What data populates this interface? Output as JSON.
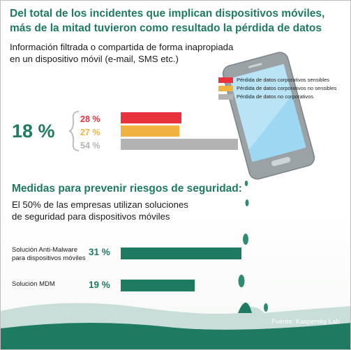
{
  "title": "Del total de los incidentes que implican dispositivos móviles, más de la mitad tuvieron como resultado la pérdida de datos",
  "subtitle": "Información filtrada o compartida de forma inapropiada en un dispositivo móvil (e-mail, SMS etc.)",
  "big_value": "18 %",
  "section2": {
    "title": "Medidas para prevenir riesgos de seguridad:",
    "subtitle": "El 50% de las empresas utilizan soluciones de seguridad para dispositivos móviles"
  },
  "source": "Fuente: Kaspersky Lab",
  "colors": {
    "green": "#1e7a61",
    "red": "#e8323c",
    "orange": "#f0b240",
    "gray": "#b3b3b3",
    "water": "#c9ded8"
  },
  "chart_data": [
    {
      "type": "bar",
      "orientation": "horizontal",
      "legend_position": "top-right",
      "series": [
        {
          "name": "Pérdida de datos corporativos sensibles",
          "value": 28,
          "label": "28 %",
          "color": "#e8323c"
        },
        {
          "name": "Pérdida de datos corporativos no sensibles",
          "value": 27,
          "label": "27 %",
          "color": "#f0b240"
        },
        {
          "name": "Pérdida de datos no corporativos",
          "value": 54,
          "label": "54 %",
          "color": "#b3b3b3"
        }
      ]
    },
    {
      "type": "bar",
      "orientation": "horizontal",
      "categories": [
        "Solución Anti-Malware para dispositivos móviles",
        "Solución MDM"
      ],
      "values": [
        31,
        19
      ],
      "labels": [
        "31 %",
        "19 %"
      ],
      "color": "#1e7a61"
    }
  ]
}
